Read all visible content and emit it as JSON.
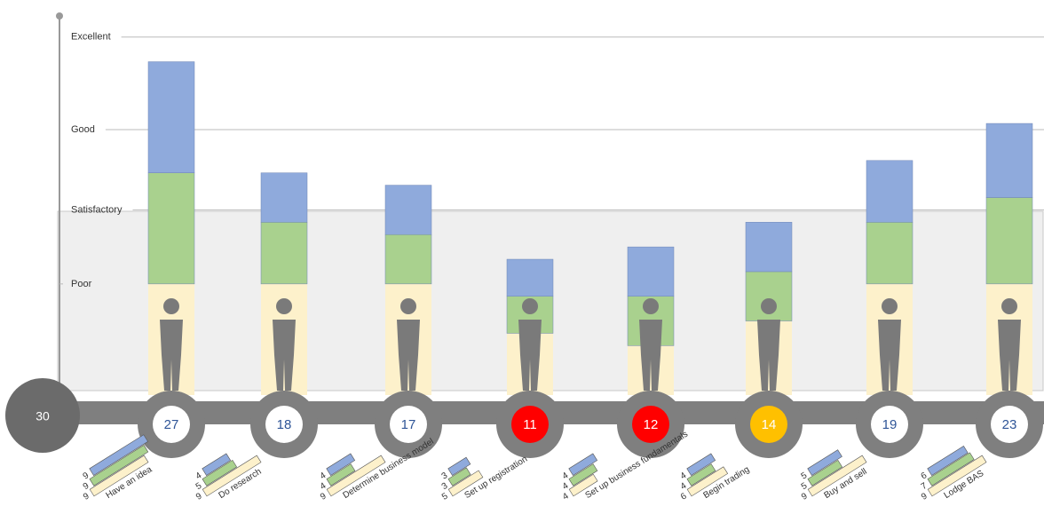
{
  "chart_data": {
    "type": "bar",
    "stacked": true,
    "timeline_start": "30",
    "categories": [
      "Have an idea",
      "Do research",
      "Determine business model",
      "Set up registration",
      "Set up business fundamentals",
      "Begin trading",
      "Buy and sell",
      "Lodge BAS"
    ],
    "totals": [
      27,
      18,
      17,
      11,
      12,
      14,
      19,
      23
    ],
    "total_colors": [
      "#ffffff",
      "#ffffff",
      "#ffffff",
      "#ff0000",
      "#ff0000",
      "#ffc000",
      "#ffffff",
      "#ffffff"
    ],
    "series": [
      {
        "color": "#fdf1cb",
        "values": [
          9,
          9,
          9,
          5,
          4,
          6,
          9,
          9
        ]
      },
      {
        "color": "#a9d18e",
        "values": [
          9,
          5,
          4,
          3,
          4,
          4,
          5,
          7
        ]
      },
      {
        "color": "#8faadc",
        "values": [
          9,
          4,
          4,
          3,
          4,
          4,
          5,
          6
        ]
      }
    ],
    "ylim": [
      0,
      32
    ],
    "yticks": [
      {
        "value": 9,
        "label": "Poor"
      },
      {
        "value": 15,
        "label": "Satisfactory"
      },
      {
        "value": 21.5,
        "label": "Good"
      },
      {
        "value": 29,
        "label": "Excellent"
      }
    ],
    "grid": true
  }
}
